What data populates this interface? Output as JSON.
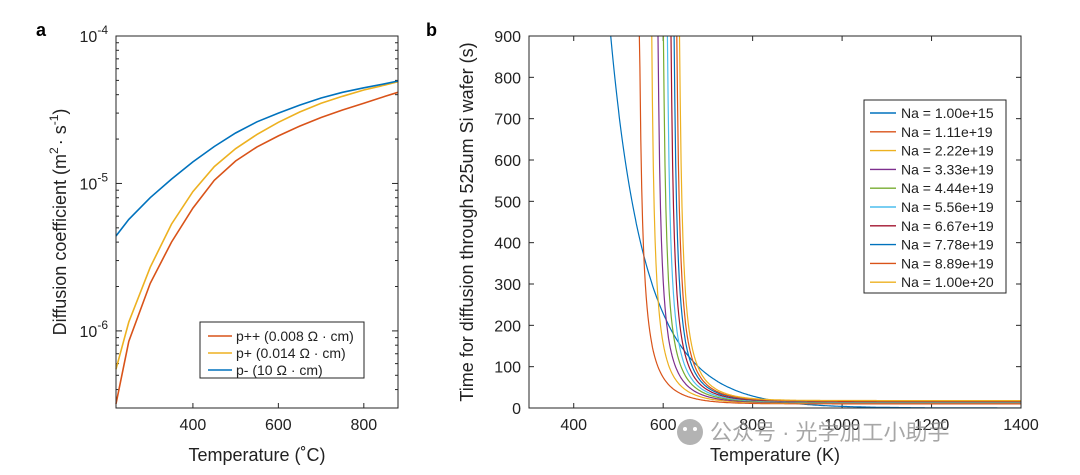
{
  "chart_data": [
    {
      "panel_label": "a",
      "type": "line",
      "xlabel": "Temperature (˚C)",
      "ylabel": "Diffusion coefficient (m",
      "ylabel_sup1": "2",
      "ylabel_mid": "· s",
      "ylabel_sup2": "-1",
      "ylabel_end": ")",
      "xlim": [
        220,
        880
      ],
      "ylim": [
        3e-07,
        0.0001
      ],
      "yscale": "log",
      "xticks": [
        400,
        600,
        800
      ],
      "yticks": [
        {
          "value": 1e-06,
          "base": "10",
          "exp": "-6"
        },
        {
          "value": 1e-05,
          "base": "10",
          "exp": "-5"
        },
        {
          "value": 0.0001,
          "base": "10",
          "exp": "-4"
        }
      ],
      "legend_position": "bottom-right",
      "series": [
        {
          "name": "p++ (0.008 Ω · cm)",
          "color": "#d95319",
          "x": [
            220,
            250,
            300,
            350,
            400,
            450,
            500,
            550,
            600,
            650,
            700,
            750,
            800,
            850,
            880
          ],
          "y": [
            3.2e-07,
            8.5e-07,
            2.1e-06,
            4e-06,
            6.8e-06,
            1.05e-05,
            1.42e-05,
            1.77e-05,
            2.1e-05,
            2.45e-05,
            2.8e-05,
            3.15e-05,
            3.5e-05,
            3.9e-05,
            4.15e-05
          ]
        },
        {
          "name": "p+ (0.014 Ω · cm)",
          "color": "#edb120",
          "x": [
            220,
            250,
            300,
            350,
            400,
            450,
            500,
            550,
            600,
            650,
            700,
            750,
            800,
            850,
            880
          ],
          "y": [
            5.5e-07,
            1.15e-06,
            2.7e-06,
            5.3e-06,
            8.8e-06,
            1.3e-05,
            1.72e-05,
            2.15e-05,
            2.6e-05,
            3.05e-05,
            3.5e-05,
            3.9e-05,
            4.3e-05,
            4.65e-05,
            4.9e-05
          ]
        },
        {
          "name": "p- (10 Ω · cm)",
          "color": "#0072bd",
          "x": [
            220,
            250,
            300,
            350,
            400,
            450,
            500,
            550,
            600,
            650,
            700,
            750,
            800,
            850,
            880
          ],
          "y": [
            4.4e-06,
            5.7e-06,
            8e-06,
            1.07e-05,
            1.4e-05,
            1.78e-05,
            2.2e-05,
            2.62e-05,
            3e-05,
            3.4e-05,
            3.8e-05,
            4.15e-05,
            4.45e-05,
            4.75e-05,
            4.95e-05
          ]
        }
      ]
    },
    {
      "panel_label": "b",
      "type": "line",
      "xlabel": "Temperature (K)",
      "ylabel": "Time for diffusion through 525um Si wafer (s)",
      "xlim": [
        300,
        1400
      ],
      "ylim": [
        0,
        900
      ],
      "xticks": [
        400,
        600,
        800,
        1000,
        1200,
        1400
      ],
      "yticks": [
        0,
        100,
        200,
        300,
        400,
        500,
        600,
        700,
        800,
        900
      ],
      "legend_position": "top-right",
      "curve_model": "y = A / (exp(k*(x - x0)) - 1) + c",
      "series": [
        {
          "name": "Na = 1.00e+15",
          "color": "#0072bd",
          "x0": 340,
          "k": 0.01,
          "A": 2850,
          "c": 0
        },
        {
          "name": "Na = 1.11e+19",
          "color": "#d95319",
          "x0": 540,
          "k": 0.0185,
          "A": 130,
          "c": 10
        },
        {
          "name": "Na = 2.22e+19",
          "color": "#edb120",
          "x0": 568,
          "k": 0.019,
          "A": 120,
          "c": 12
        },
        {
          "name": "Na = 3.33e+19",
          "color": "#7e2f8e",
          "x0": 582,
          "k": 0.019,
          "A": 120,
          "c": 13
        },
        {
          "name": "Na = 4.44e+19",
          "color": "#77ac30",
          "x0": 594,
          "k": 0.019,
          "A": 120,
          "c": 14
        },
        {
          "name": "Na = 5.56e+19",
          "color": "#4dbeee",
          "x0": 603,
          "k": 0.019,
          "A": 120,
          "c": 15
        },
        {
          "name": "Na = 6.67e+19",
          "color": "#a2142f",
          "x0": 611,
          "k": 0.019,
          "A": 120,
          "c": 16
        },
        {
          "name": "Na = 7.78e+19",
          "color": "#0072bd",
          "x0": 618,
          "k": 0.019,
          "A": 120,
          "c": 17
        },
        {
          "name": "Na = 8.89e+19",
          "color": "#d95319",
          "x0": 624,
          "k": 0.019,
          "A": 120,
          "c": 17
        },
        {
          "name": "Na = 1.00e+20",
          "color": "#edb120",
          "x0": 630,
          "k": 0.019,
          "A": 120,
          "c": 18
        }
      ]
    }
  ],
  "watermark": "公众号 · 光学加工小助手"
}
